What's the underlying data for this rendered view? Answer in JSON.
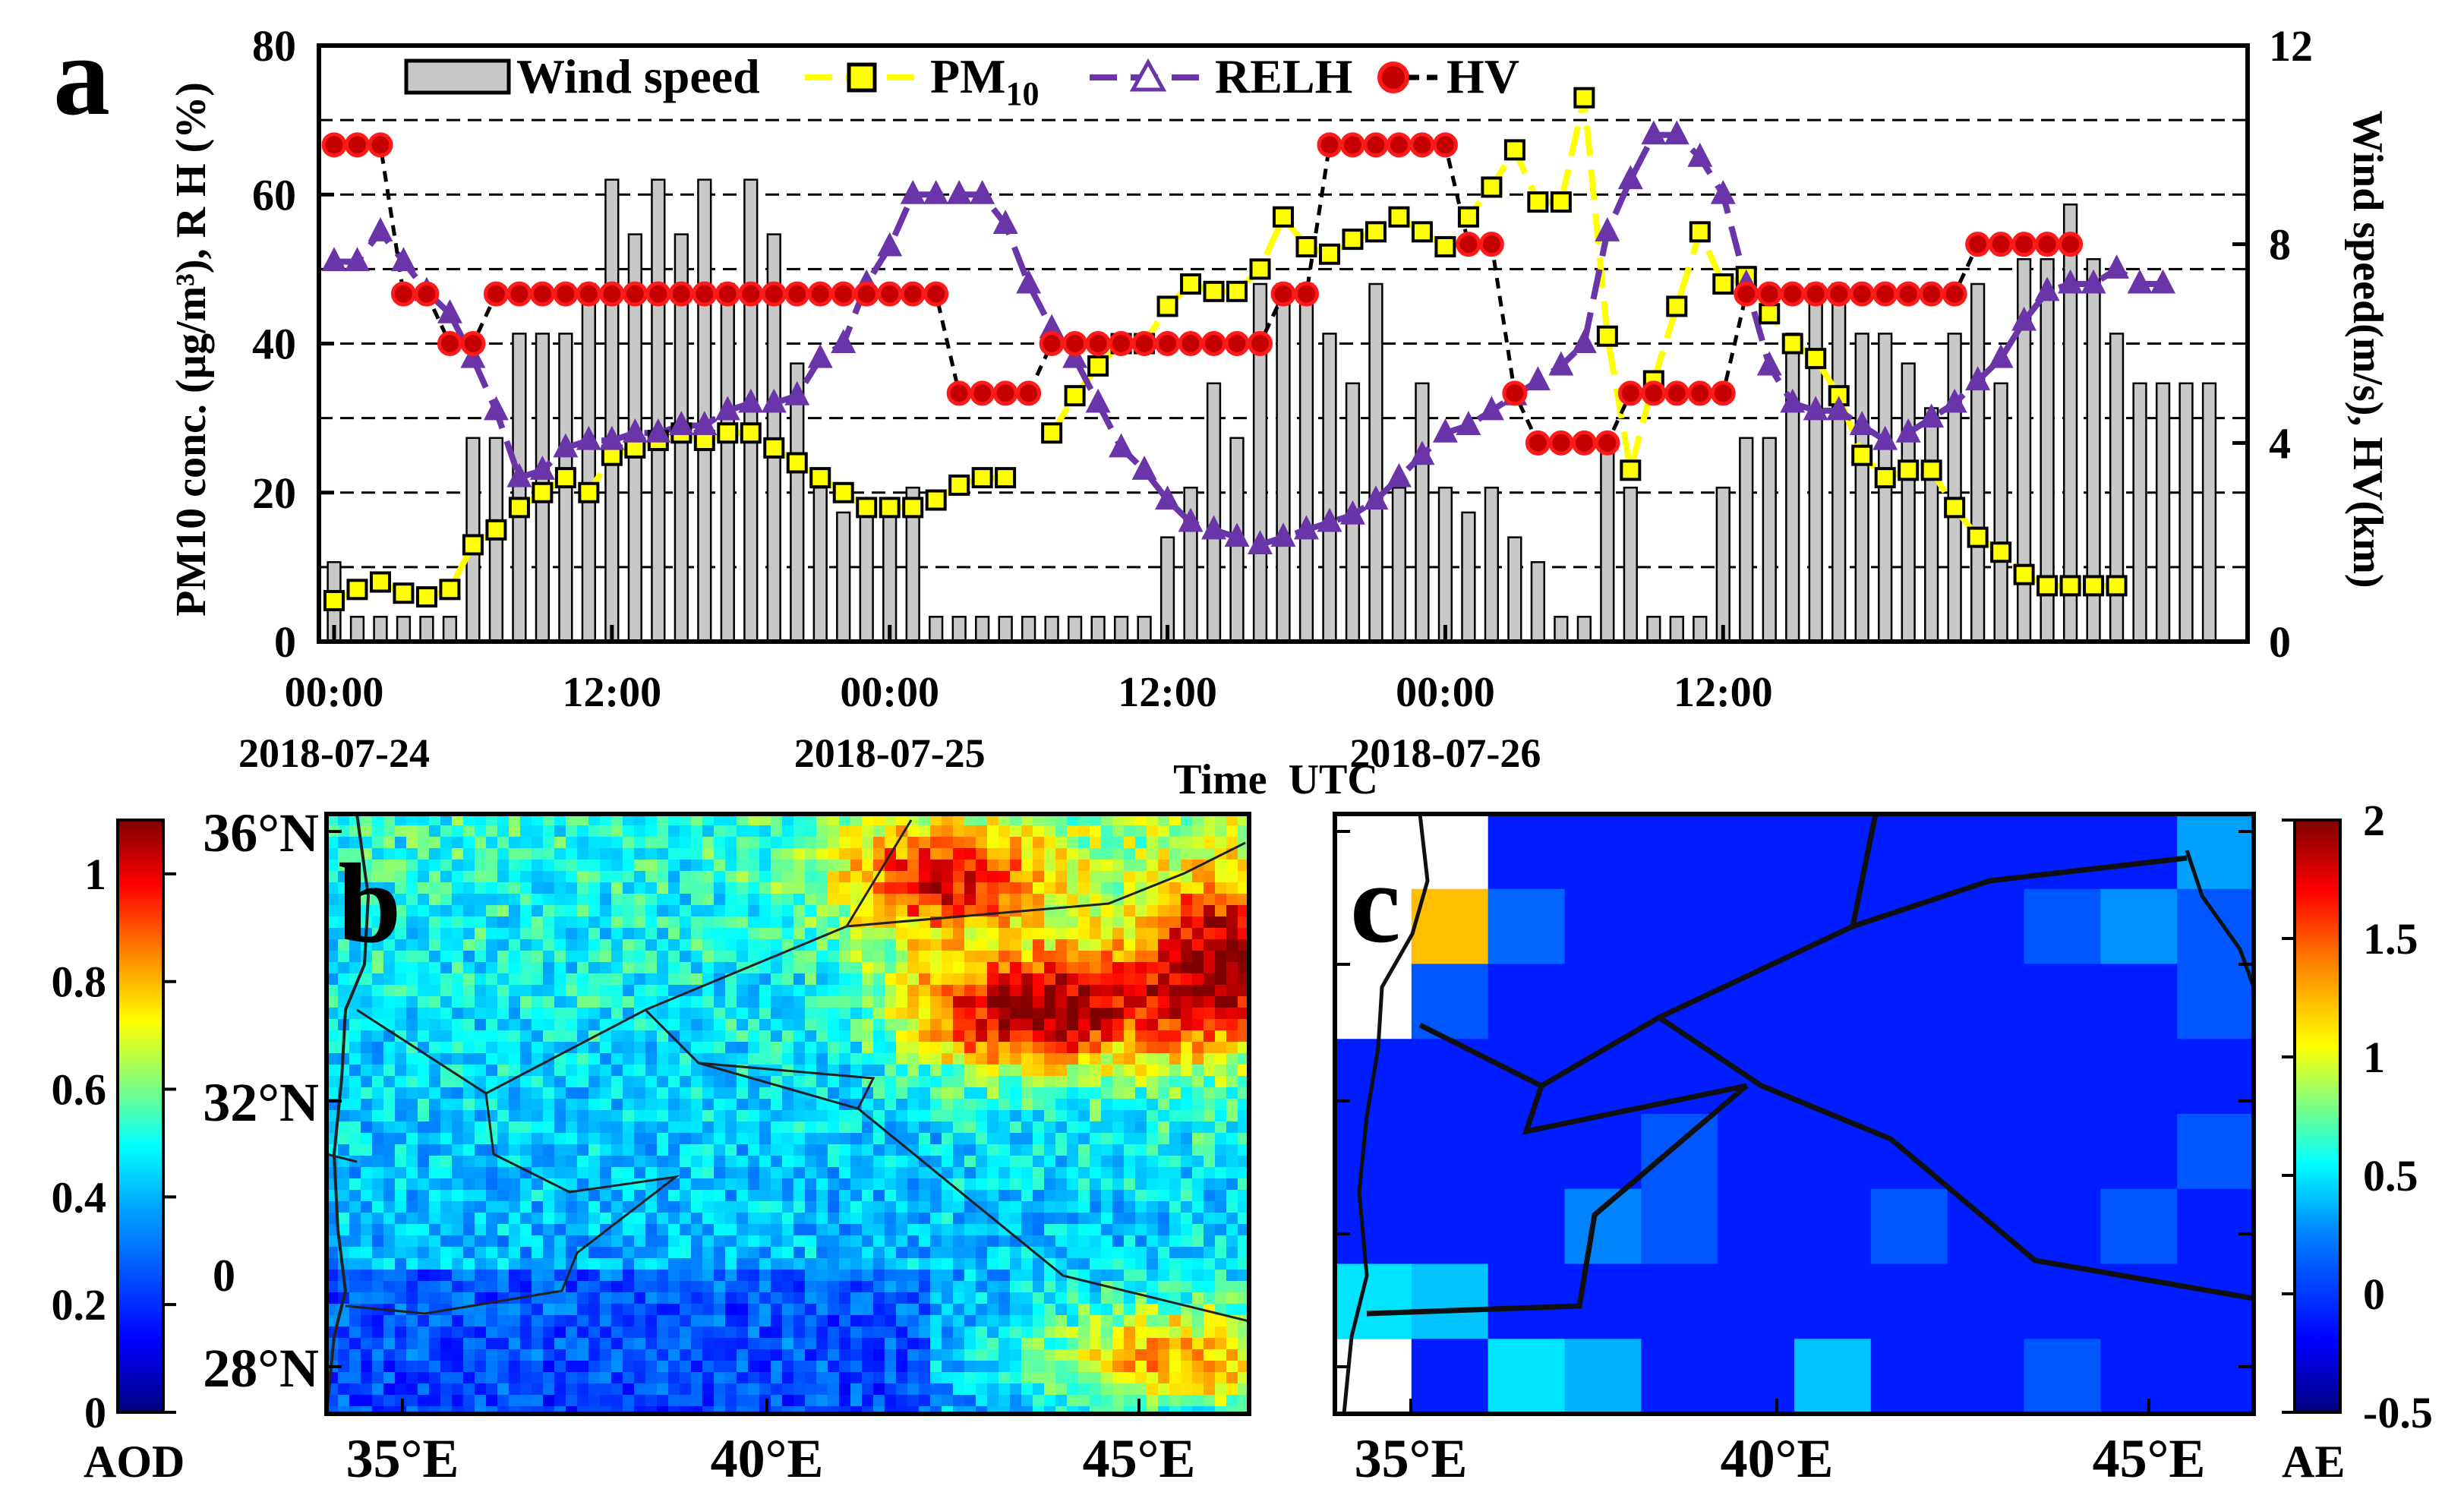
{
  "panel_labels": {
    "a": "a",
    "b": "b",
    "c": "c"
  },
  "colors": {
    "wind_bar": "#c8c8c8",
    "pm10": "#ffff00",
    "relh": "#6a35a8",
    "hv_fill": "#c40000",
    "hv_edge": "#ff1a1a",
    "map_land": "#1f7fe0",
    "aod_colormap": [
      "#00007f",
      "#0000ff",
      "#007fff",
      "#00ffff",
      "#7fff7f",
      "#ffff00",
      "#ff7f00",
      "#ff0000",
      "#7f0000"
    ]
  },
  "chart_data": [
    {
      "id": "a",
      "type": "bar+line",
      "title": "",
      "xlabel": "Time  UTC",
      "ylabel_left": "PM10 conc. (µg/m³), R H (%)",
      "ylabel_right": "Wind speed(m/s), HV(km)",
      "ylim_left": [
        0,
        80
      ],
      "ylim_right": [
        0,
        12
      ],
      "yticks_left": [
        "0",
        "20",
        "40",
        "60",
        "80"
      ],
      "yticks_right": [
        "0",
        "4",
        "8",
        "12"
      ],
      "xticks": [
        {
          "label": "00:00",
          "date": "2018-07-24",
          "hour": 0
        },
        {
          "label": "12:00",
          "date": "",
          "hour": 12
        },
        {
          "label": "00:00",
          "date": "2018-07-25",
          "hour": 24
        },
        {
          "label": "12:00",
          "date": "",
          "hour": 36
        },
        {
          "label": "00:00",
          "date": "2018-07-26",
          "hour": 48
        },
        {
          "label": "12:00",
          "date": "",
          "hour": 60
        }
      ],
      "grid": "horizontal dashed",
      "legend": [
        {
          "label": "Wind speed",
          "kind": "bar"
        },
        {
          "label": "PM",
          "sub": "10",
          "kind": "square"
        },
        {
          "label": "RELH",
          "kind": "triangle"
        },
        {
          "label": "HV",
          "kind": "circle"
        }
      ],
      "series": [
        {
          "name": "Wind speed",
          "axis": "right",
          "unit": "m/s",
          "x_hours_start": 0,
          "step_hours": 1,
          "values": [
            1.6,
            0.5,
            0.5,
            0.5,
            0.5,
            0.5,
            4.1,
            4.1,
            6.2,
            6.2,
            6.2,
            7.2,
            9.3,
            8.2,
            9.3,
            8.2,
            9.3,
            7.2,
            9.3,
            8.2,
            5.6,
            3.1,
            2.6,
            2.6,
            2.6,
            3.1,
            0.5,
            0.5,
            0.5,
            0.5,
            0.5,
            0.5,
            0.5,
            0.5,
            0.5,
            0.5,
            2.1,
            3.1,
            5.2,
            4.1,
            7.2,
            7.2,
            7.2,
            6.2,
            5.2,
            7.2,
            3.1,
            5.2,
            3.1,
            2.6,
            3.1,
            2.1,
            1.6,
            0.5,
            0.5,
            4.1,
            3.1,
            0.5,
            0.5,
            0.5,
            3.1,
            4.1,
            4.1,
            6.2,
            7.2,
            7.2,
            6.2,
            6.2,
            5.6,
            4.7,
            6.2,
            7.2,
            5.2,
            7.7,
            7.7,
            8.8,
            7.7,
            6.2,
            5.2,
            5.2,
            5.2,
            5.2
          ]
        },
        {
          "name": "PM10",
          "axis": "left",
          "unit": "µg/m³",
          "x_hours_start": 0,
          "step_hours": 1,
          "values": [
            5.5,
            7,
            8,
            6.5,
            6,
            7,
            13,
            15,
            18,
            20,
            22,
            20,
            25,
            26,
            27,
            28,
            27,
            28,
            28,
            26,
            24,
            22,
            20,
            18,
            18,
            18,
            19,
            21,
            22,
            22,
            null,
            28,
            33,
            37,
            40,
            40,
            45,
            48,
            47,
            47,
            50,
            57,
            53,
            52,
            54,
            55,
            57,
            55,
            53,
            57,
            61,
            66,
            59,
            59,
            73,
            41,
            23,
            35,
            45,
            55,
            48,
            49,
            44,
            40,
            38,
            33,
            25,
            22,
            23,
            23,
            18,
            14,
            12,
            9,
            7.5,
            7.5,
            7.5,
            7.5,
            null,
            null,
            null,
            null
          ]
        },
        {
          "name": "RELH",
          "axis": "left",
          "unit": "%",
          "x_hours_start": 0,
          "step_hours": 1,
          "values": [
            51,
            51,
            55,
            51,
            47,
            44,
            38,
            31,
            22,
            23,
            26,
            27,
            27,
            28,
            28,
            29,
            29,
            31,
            32,
            32,
            33,
            38,
            40,
            48,
            53,
            60,
            60,
            60,
            60,
            56,
            48,
            42,
            38,
            32,
            26,
            23,
            19,
            16,
            15,
            14,
            13,
            14,
            15,
            16,
            17,
            19,
            22,
            25,
            28,
            29,
            31,
            33,
            35,
            37,
            40,
            55,
            62,
            68,
            68,
            65,
            60,
            48,
            37,
            32,
            31,
            31,
            29,
            27,
            28,
            30,
            32,
            35,
            38,
            43,
            47,
            48,
            48,
            50,
            48,
            48,
            null,
            null
          ]
        },
        {
          "name": "HV",
          "axis": "right",
          "unit": "km",
          "x_hours_start": 0,
          "step_hours": 1,
          "values": [
            10,
            10,
            10,
            7,
            7,
            6,
            6,
            7,
            7,
            7,
            7,
            7,
            7,
            7,
            7,
            7,
            7,
            7,
            7,
            7,
            7,
            7,
            7,
            7,
            7,
            7,
            7,
            5,
            5,
            5,
            5,
            6,
            6,
            6,
            6,
            6,
            6,
            6,
            6,
            6,
            6,
            7,
            7,
            10,
            10,
            10,
            10,
            10,
            10,
            8,
            8,
            5,
            4,
            4,
            4,
            4,
            5,
            5,
            5,
            5,
            5,
            7,
            7,
            7,
            7,
            7,
            7,
            7,
            7,
            7,
            7,
            8,
            8,
            8,
            8,
            8,
            null,
            null,
            null,
            null,
            null,
            null
          ]
        }
      ]
    },
    {
      "id": "b",
      "type": "heatmap",
      "title": "",
      "colorbar_label": "AOD",
      "colorbar_range": [
        0,
        1.1
      ],
      "colorbar_ticks": [
        "0",
        "0.2",
        "0.4",
        "0.6",
        "0.8",
        "1"
      ],
      "lon_range": [
        34,
        46.5
      ],
      "lat_range": [
        27.5,
        36
      ],
      "xticks": [
        "35°E",
        "40°E",
        "45°E"
      ],
      "yticks": [
        "28°N",
        "32°N",
        "36°N"
      ],
      "inset_text": "0",
      "summary": "Low AOD (~0.3–0.5) over west and south, high AOD (>0.8) in northeast and east (Iraq) with maxima near 44°E, 32.5°N and along the northeast"
    },
    {
      "id": "c",
      "type": "heatmap",
      "title": "",
      "colorbar_label": "AE",
      "colorbar_range": [
        -0.5,
        2
      ],
      "colorbar_ticks": [
        "-0.5",
        "0",
        "0.5",
        "1",
        "1.5",
        "2"
      ],
      "lon_range": [
        34,
        46.5
      ],
      "lat_range": [
        27.5,
        36
      ],
      "xticks": [
        "35°E",
        "40°E",
        "45°E"
      ],
      "summary": "AE mostly ~0 across region; small patches of 0.2–0.6; one high patch (~1.3) near 35.5°E, 34.5°N"
    }
  ]
}
